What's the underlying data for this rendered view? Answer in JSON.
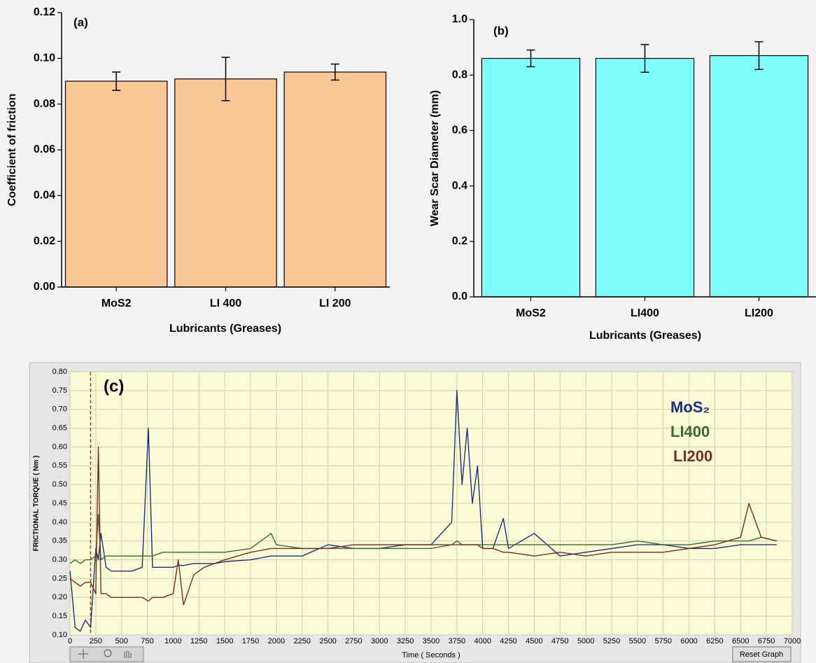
{
  "chart_data": [
    {
      "type": "bar",
      "title": "(a)",
      "ylabel": "Coefficient of friction",
      "xlabel": "Lubricants (Greases)",
      "categories": [
        "MoS2",
        "LI 400",
        "LI 200"
      ],
      "values": [
        0.09,
        0.091,
        0.094
      ],
      "errors": [
        0.004,
        0.0095,
        0.0035
      ],
      "color": "#f9c896",
      "ylim": [
        0,
        0.12
      ],
      "yticks": [
        {
          "value": 0,
          "label": "0.00"
        },
        {
          "value": 0.02,
          "label": "0.02"
        },
        {
          "value": 0.04,
          "label": "0.04"
        },
        {
          "value": 0.06,
          "label": "0.06"
        },
        {
          "value": 0.08,
          "label": "0.08"
        },
        {
          "value": 0.1,
          "label": "0.10"
        },
        {
          "value": 0.12,
          "label": "0.12"
        }
      ]
    },
    {
      "type": "bar",
      "title": "(b)",
      "ylabel": "Wear Scar Diameter (mm)",
      "xlabel": "Lubricants (Greases)",
      "categories": [
        "MoS2",
        "LI400",
        "LI200"
      ],
      "values": [
        0.86,
        0.86,
        0.87
      ],
      "errors": [
        0.03,
        0.05,
        0.05
      ],
      "color": "#7ffcfc",
      "ylim": [
        0,
        1.0
      ],
      "yticks": [
        {
          "value": 0,
          "label": "0.0"
        },
        {
          "value": 0.2,
          "label": "0.2"
        },
        {
          "value": 0.4,
          "label": "0.4"
        },
        {
          "value": 0.6,
          "label": "0.6"
        },
        {
          "value": 0.8,
          "label": "0.8"
        },
        {
          "value": 1.0,
          "label": "1.0"
        }
      ]
    },
    {
      "type": "line",
      "title": "(c)",
      "ylabel": "FRICTIONAL TORQUE ( Nm )",
      "xlabel": "Time ( Seconds )",
      "reset_button": "Reset Graph",
      "grid": true,
      "cursor_x": 200,
      "cursor_color": "#c0281c",
      "x": [
        0,
        50,
        100,
        150,
        200,
        250,
        275,
        300,
        350,
        400,
        500,
        600,
        700,
        760,
        800,
        900,
        1000,
        1050,
        1100,
        1200,
        1300,
        1400,
        1500,
        1750,
        1950,
        2000,
        2250,
        2500,
        2750,
        3000,
        3250,
        3500,
        3700,
        3750,
        3800,
        3850,
        3900,
        3950,
        4000,
        4100,
        4200,
        4250,
        4500,
        4750,
        5000,
        5250,
        5500,
        5750,
        6000,
        6250,
        6500,
        6580,
        6700,
        6850
      ],
      "series": [
        {
          "name": "MoS₂",
          "color": "#1f2f80",
          "values": [
            0.27,
            0.12,
            0.11,
            0.14,
            0.12,
            0.33,
            0.3,
            0.37,
            0.28,
            0.27,
            0.27,
            0.27,
            0.28,
            0.65,
            0.28,
            0.28,
            0.28,
            0.285,
            0.285,
            0.29,
            0.29,
            0.29,
            0.295,
            0.3,
            0.31,
            0.31,
            0.31,
            0.34,
            0.33,
            0.33,
            0.34,
            0.34,
            0.4,
            0.75,
            0.5,
            0.65,
            0.45,
            0.55,
            0.33,
            0.33,
            0.41,
            0.33,
            0.37,
            0.31,
            0.32,
            0.33,
            0.34,
            0.34,
            0.33,
            0.33,
            0.34,
            0.34,
            0.34,
            0.34
          ]
        },
        {
          "name": "LI400",
          "color": "#3a6b2a",
          "values": [
            0.29,
            0.3,
            0.29,
            0.3,
            0.3,
            0.31,
            0.42,
            0.3,
            0.31,
            0.31,
            0.31,
            0.31,
            0.31,
            0.31,
            0.31,
            0.32,
            0.32,
            0.32,
            0.32,
            0.32,
            0.32,
            0.32,
            0.32,
            0.33,
            0.37,
            0.34,
            0.33,
            0.33,
            0.33,
            0.33,
            0.33,
            0.33,
            0.34,
            0.35,
            0.34,
            0.34,
            0.34,
            0.34,
            0.34,
            0.34,
            0.34,
            0.34,
            0.34,
            0.34,
            0.34,
            0.34,
            0.35,
            0.34,
            0.34,
            0.35,
            0.35,
            0.35,
            0.36,
            0.35
          ]
        },
        {
          "name": "LI200",
          "color": "#7a2e1e",
          "values": [
            0.25,
            0.24,
            0.23,
            0.24,
            0.24,
            0.21,
            0.6,
            0.21,
            0.21,
            0.2,
            0.2,
            0.2,
            0.2,
            0.19,
            0.2,
            0.2,
            0.21,
            0.3,
            0.18,
            0.26,
            0.28,
            0.29,
            0.3,
            0.32,
            0.33,
            0.33,
            0.33,
            0.33,
            0.34,
            0.34,
            0.34,
            0.34,
            0.34,
            0.34,
            0.34,
            0.34,
            0.34,
            0.34,
            0.33,
            0.33,
            0.32,
            0.32,
            0.31,
            0.32,
            0.31,
            0.32,
            0.32,
            0.32,
            0.33,
            0.34,
            0.36,
            0.45,
            0.36,
            0.35
          ]
        }
      ],
      "xlim": [
        0,
        7000
      ],
      "ylim": [
        0.1,
        0.8
      ],
      "xticks": [
        0,
        250,
        500,
        750,
        1000,
        1250,
        1500,
        1750,
        2000,
        2250,
        2500,
        2750,
        3000,
        3250,
        3500,
        3750,
        4000,
        4250,
        4500,
        4750,
        5000,
        5250,
        5500,
        5750,
        6000,
        6250,
        6500,
        6750,
        7000
      ],
      "yticks": [
        {
          "value": 0.1,
          "label": "0.10"
        },
        {
          "value": 0.15,
          "label": "0.15"
        },
        {
          "value": 0.2,
          "label": "0.20"
        },
        {
          "value": 0.25,
          "label": "0.25"
        },
        {
          "value": 0.3,
          "label": "0.30"
        },
        {
          "value": 0.35,
          "label": "0.35"
        },
        {
          "value": 0.4,
          "label": "0.40"
        },
        {
          "value": 0.45,
          "label": "0.45"
        },
        {
          "value": 0.5,
          "label": "0.50"
        },
        {
          "value": 0.55,
          "label": "0.55"
        },
        {
          "value": 0.6,
          "label": "0.60"
        },
        {
          "value": 0.65,
          "label": "0.65"
        },
        {
          "value": 0.7,
          "label": "0.70"
        },
        {
          "value": 0.75,
          "label": "0.75"
        },
        {
          "value": 0.8,
          "label": "0.80"
        }
      ]
    }
  ]
}
